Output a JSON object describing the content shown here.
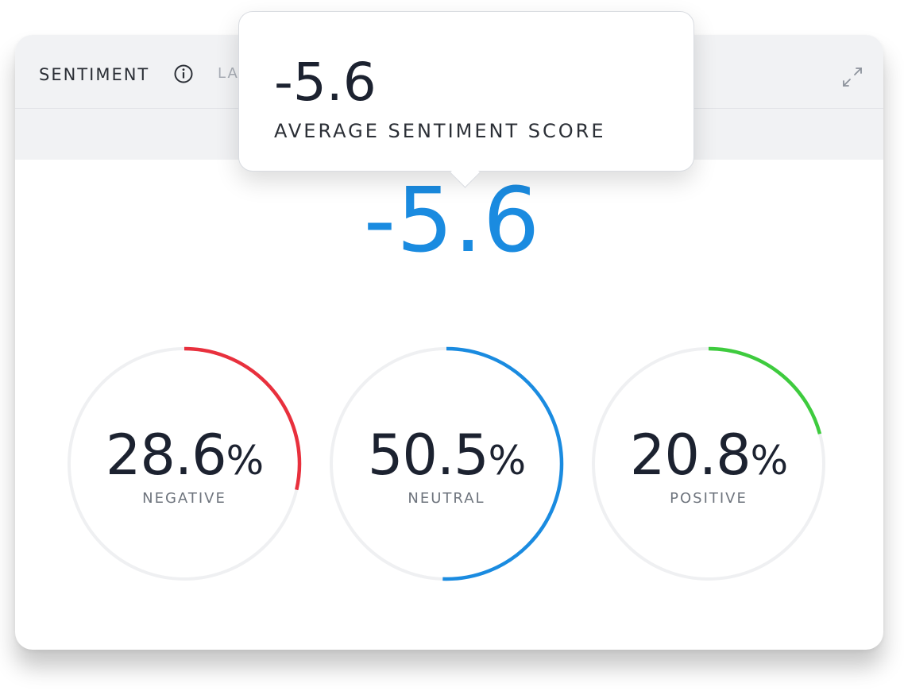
{
  "widget": {
    "title": "SENTIMENT",
    "subtitle_partial": "LA",
    "info_icon": "info-icon",
    "expand_icon": "expand-icon"
  },
  "average_score": {
    "value": "-5.6",
    "color": "#1a8be0"
  },
  "tooltip": {
    "value": "-5.6",
    "label": "AVERAGE SENTIMENT SCORE"
  },
  "gauges": [
    {
      "key": "negative",
      "value": "28.6",
      "unit": "%",
      "label": "NEGATIVE",
      "fraction": 0.286,
      "color": "#e8303d"
    },
    {
      "key": "neutral",
      "value": "50.5",
      "unit": "%",
      "label": "NEUTRAL",
      "fraction": 0.505,
      "color": "#1a8be0"
    },
    {
      "key": "positive",
      "value": "20.8",
      "unit": "%",
      "label": "POSITIVE",
      "fraction": 0.208,
      "color": "#3ecb3e"
    }
  ]
}
